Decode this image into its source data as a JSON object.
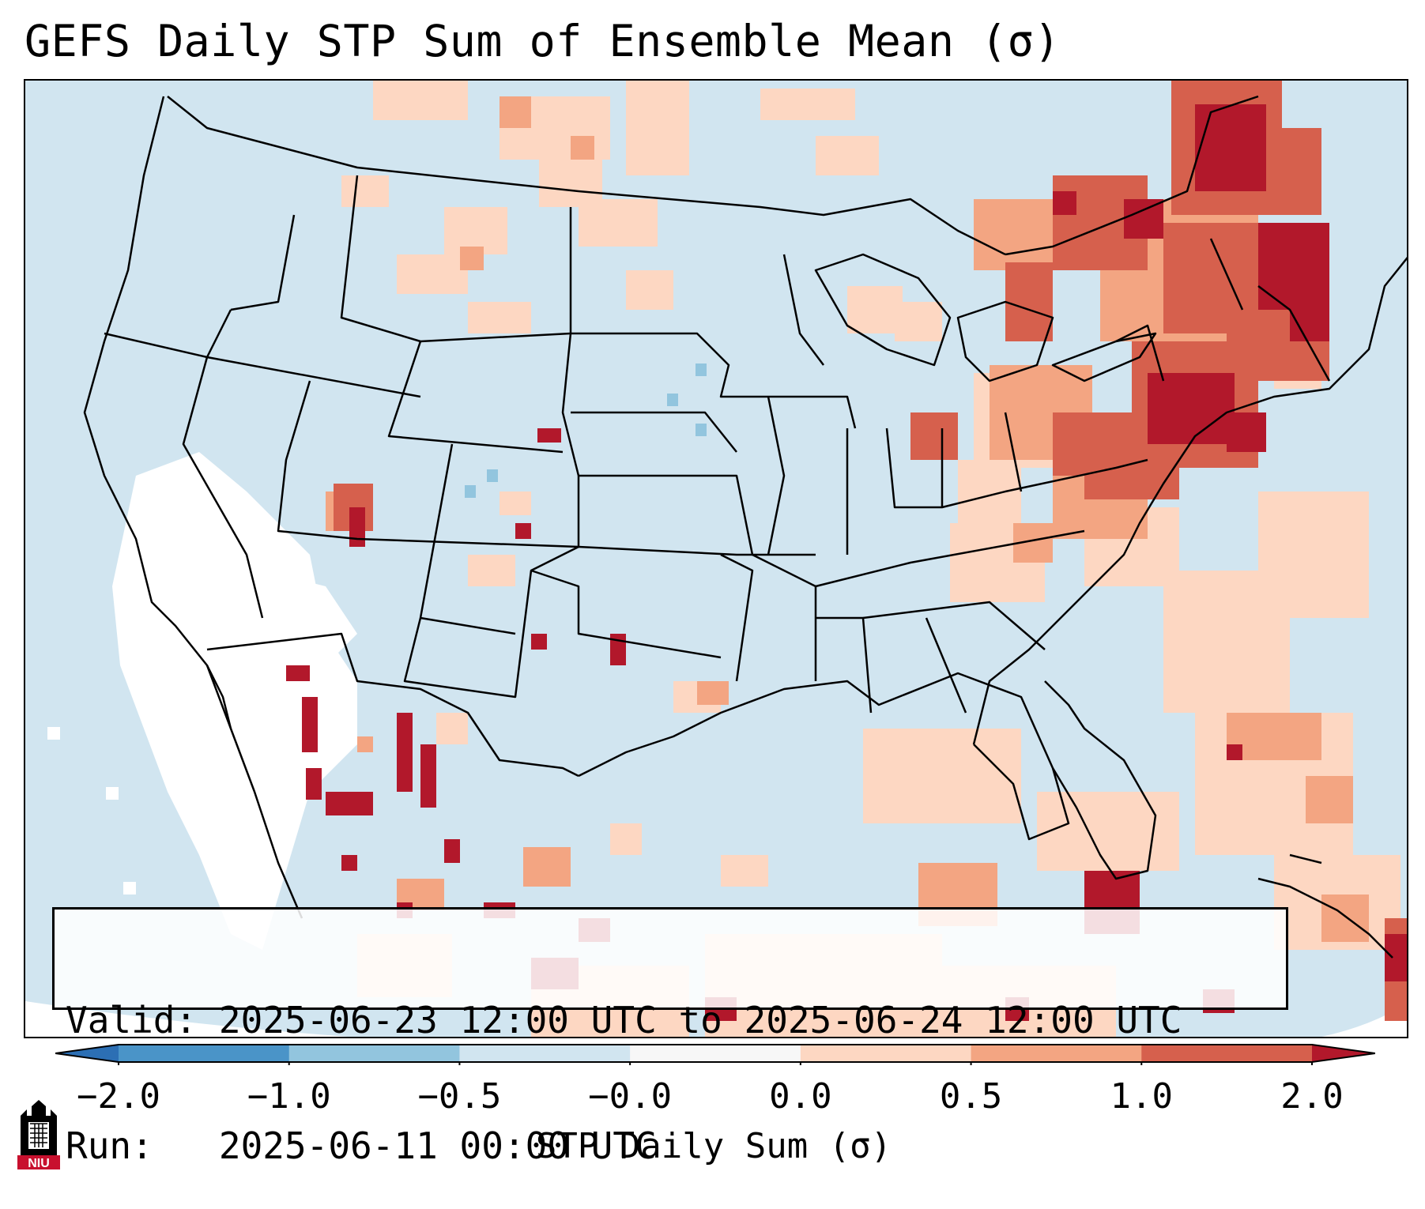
{
  "title": "GEFS Daily STP Sum of Ensemble Mean (σ)",
  "info": {
    "valid_label": "Valid:",
    "valid_value": "2025-06-23 12:00 UTC to 2025-06-24 12:00 UTC",
    "run_label": "Run:",
    "run_value": "2025-06-11 00:00 UTC"
  },
  "colorbar": {
    "title": "STP Daily Sum (σ)",
    "tick_labels": [
      "−2.0",
      "−1.0",
      "−0.5",
      "−0.0",
      "0.0",
      "0.5",
      "1.0",
      "2.0"
    ],
    "bin_colors": [
      "#2c6fb4",
      "#4a94c8",
      "#92c5de",
      "#d1e5f0",
      "#f7f7f7",
      "#fdd7c2",
      "#f3a582",
      "#d6604d",
      "#b2182b"
    ],
    "extend": "both"
  },
  "map": {
    "ocean_color": "#d1e5f0",
    "land_color": "#d1e5f0",
    "outside_domain_color": "#ffffff",
    "neutral_color": "#ffffff",
    "border_color": "#000000"
  },
  "logo": {
    "text": "NIU",
    "colors": {
      "red": "#c8102e",
      "black": "#000000"
    }
  }
}
